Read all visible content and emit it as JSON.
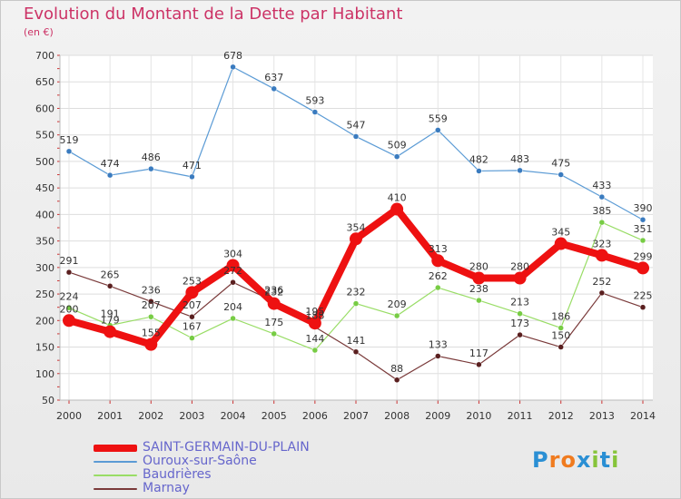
{
  "chart_data": {
    "type": "line",
    "title": "Evolution du Montant de la Dette par Habitant",
    "subtitle": "(en €)",
    "xlabel": "",
    "ylabel": "",
    "ylim": [
      50,
      700
    ],
    "yticks": [
      50,
      100,
      150,
      200,
      250,
      300,
      350,
      400,
      450,
      500,
      550,
      600,
      650,
      700
    ],
    "categories": [
      "2000",
      "2001",
      "2002",
      "2003",
      "2004",
      "2005",
      "2006",
      "2007",
      "2008",
      "2009",
      "2010",
      "2011",
      "2012",
      "2013",
      "2014"
    ],
    "grid": true,
    "legend_position": "bottom-left",
    "series": [
      {
        "name": "Ouroux-sur-Saône",
        "color": "#5b9bd5",
        "marker": "#3a7bbf",
        "highlight": false,
        "values": [
          519,
          474,
          486,
          471,
          678,
          637,
          593,
          547,
          509,
          559,
          482,
          483,
          475,
          433,
          390
        ]
      },
      {
        "name": "Baudrières",
        "color": "#99dd66",
        "marker": "#77cc44",
        "highlight": false,
        "values": [
          224,
          191,
          207,
          167,
          204,
          175,
          144,
          232,
          209,
          262,
          238,
          213,
          186,
          385,
          351
        ]
      },
      {
        "name": "Marnay",
        "color": "#7a3a3a",
        "marker": "#5a1f1f",
        "highlight": false,
        "values": [
          291,
          265,
          236,
          207,
          272,
          236,
          188,
          141,
          88,
          133,
          117,
          173,
          150,
          252,
          225
        ]
      },
      {
        "name": "SAINT-GERMAIN-DU-PLAIN",
        "color": "#ee1111",
        "marker": "#ee1111",
        "highlight": true,
        "values": [
          200,
          179,
          155,
          253,
          304,
          232,
          195,
          354,
          410,
          313,
          280,
          280,
          345,
          323,
          299
        ]
      }
    ],
    "legend_order": [
      "SAINT-GERMAIN-DU-PLAIN",
      "Ouroux-sur-Saône",
      "Baudrières",
      "Marnay"
    ],
    "legend_text_color": "#6666cc"
  },
  "branding": {
    "logo_letters": [
      "P",
      "r",
      "o",
      "x",
      "i",
      "t",
      "i"
    ],
    "logo_colors": [
      "#2a8fd4",
      "#f07b1f",
      "#f07b1f",
      "#2a8fd4",
      "#86c43a",
      "#2a8fd4",
      "#86c43a"
    ]
  }
}
